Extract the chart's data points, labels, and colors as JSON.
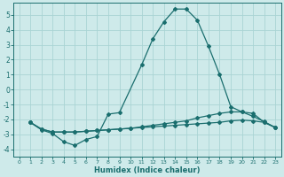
{
  "xlabel": "Humidex (Indice chaleur)",
  "background_color": "#ceeaea",
  "grid_color": "#aad4d4",
  "line_color": "#1a6e6e",
  "xlim": [
    -0.5,
    23.5
  ],
  "ylim": [
    -4.5,
    5.8
  ],
  "yticks": [
    -4,
    -3,
    -2,
    -1,
    0,
    1,
    2,
    3,
    4,
    5
  ],
  "xticks": [
    0,
    1,
    2,
    3,
    4,
    5,
    6,
    7,
    8,
    9,
    10,
    11,
    12,
    13,
    14,
    15,
    16,
    17,
    18,
    19,
    20,
    21,
    22,
    23
  ],
  "line1_x": [
    1,
    2,
    3,
    4,
    5,
    6,
    7,
    8,
    9,
    11,
    12,
    13,
    14,
    15,
    16,
    17,
    18,
    19,
    20,
    21,
    22,
    23
  ],
  "line1_y": [
    -2.2,
    -2.7,
    -2.95,
    -3.5,
    -3.75,
    -3.35,
    -3.15,
    -1.65,
    -1.55,
    1.65,
    3.4,
    4.55,
    5.4,
    5.4,
    4.65,
    2.9,
    1.0,
    -1.15,
    -1.5,
    -1.8,
    -2.15,
    -2.55
  ],
  "line2_x": [
    1,
    2,
    3,
    4,
    5,
    6,
    7,
    8,
    9,
    10,
    11,
    12,
    13,
    14,
    15,
    16,
    17,
    18,
    19,
    20,
    21,
    22,
    23
  ],
  "line2_y": [
    -2.2,
    -2.65,
    -2.85,
    -2.85,
    -2.85,
    -2.8,
    -2.75,
    -2.7,
    -2.65,
    -2.6,
    -2.55,
    -2.5,
    -2.45,
    -2.4,
    -2.35,
    -2.3,
    -2.25,
    -2.2,
    -2.1,
    -2.05,
    -2.1,
    -2.2,
    -2.55
  ],
  "line3_x": [
    1,
    2,
    3,
    4,
    5,
    6,
    7,
    8,
    9,
    10,
    11,
    12,
    13,
    14,
    15,
    16,
    17,
    18,
    19,
    20,
    21,
    22,
    23
  ],
  "line3_y": [
    -2.2,
    -2.65,
    -2.85,
    -2.85,
    -2.85,
    -2.8,
    -2.75,
    -2.7,
    -2.65,
    -2.6,
    -2.5,
    -2.4,
    -2.3,
    -2.2,
    -2.1,
    -1.9,
    -1.75,
    -1.6,
    -1.5,
    -1.5,
    -1.6,
    -2.2,
    -2.55
  ]
}
